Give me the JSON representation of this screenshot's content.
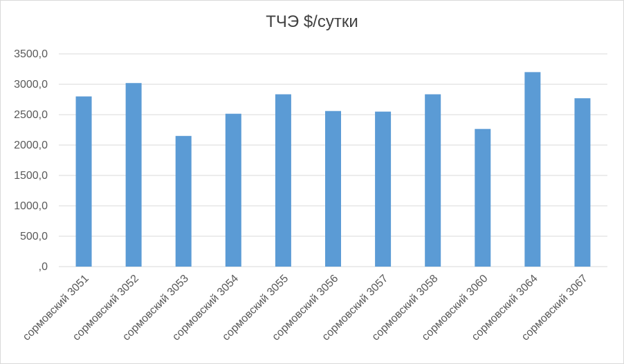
{
  "chart_data": {
    "type": "bar",
    "title": "ТЧЭ $/сутки",
    "xlabel": "",
    "ylabel": "",
    "categories": [
      "сормовский 3051",
      "сормовский 3052",
      "сормовский 3053",
      "сормовский 3054",
      "сормовский 3055",
      "сормовский 3056",
      "сормовский 3057",
      "сормовский 3058",
      "сормовский 3060",
      "сормовский 3064",
      "сормовский 3067"
    ],
    "values": [
      2800,
      3020,
      2150,
      2515,
      2835,
      2560,
      2550,
      2835,
      2265,
      3200,
      2770
    ],
    "ylim": [
      0,
      3500
    ],
    "yticks": [
      0,
      500,
      1000,
      1500,
      2000,
      2500,
      3000,
      3500
    ],
    "ytick_labels": [
      ",0",
      "500,0",
      "1000,0",
      "1500,0",
      "2000,0",
      "2500,0",
      "3000,0",
      "3500,0"
    ],
    "grid": true,
    "bar_color": "#5b9bd5"
  }
}
